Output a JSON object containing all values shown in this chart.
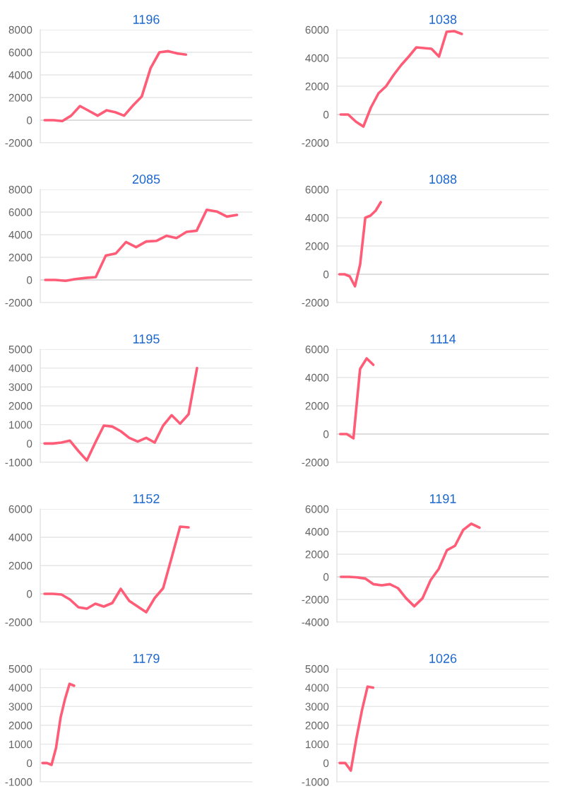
{
  "chart_data": [
    {
      "type": "line",
      "title": "1196",
      "categories": [
        null,
        null,
        null,
        null,
        null,
        null,
        null,
        null,
        null,
        null,
        null,
        null,
        null,
        null,
        null,
        null,
        null,
        null,
        null,
        null,
        null,
        null,
        null,
        null
      ],
      "series": [
        {
          "color": "#ff5c77",
          "values": [
            0,
            0,
            -80,
            400,
            1250,
            830,
            400,
            870,
            700,
            400,
            1300,
            2100,
            4600,
            6000,
            6100,
            5900,
            5800,
            null,
            null,
            null,
            null,
            null,
            null,
            null
          ]
        }
      ],
      "ylim": [
        -2000,
        8000
      ],
      "yticks": [
        -2000,
        0,
        2000,
        4000,
        6000,
        8000
      ],
      "grid": "y",
      "tick_labels": "y",
      "ref_lines": [
        {
          "axis": "y",
          "value": 0,
          "color": "#b0b0b0"
        }
      ]
    },
    {
      "type": "line",
      "title": "1038",
      "categories": [
        null,
        null,
        null,
        null,
        null,
        null,
        null,
        null,
        null,
        null,
        null,
        null,
        null,
        null,
        null,
        null,
        null,
        null,
        null,
        null,
        null,
        null,
        null,
        null,
        null,
        null,
        null,
        null
      ],
      "series": [
        {
          "color": "#ff5c77",
          "values": [
            0,
            0,
            -500,
            -850,
            500,
            1500,
            2000,
            2800,
            3500,
            4100,
            4750,
            4700,
            4650,
            4100,
            5850,
            5900,
            5700,
            null,
            null,
            null,
            null,
            null,
            null,
            null,
            null,
            null,
            null,
            null
          ]
        }
      ],
      "ylim": [
        -2000,
        6000
      ],
      "yticks": [
        -2000,
        0,
        2000,
        4000,
        6000
      ],
      "grid": "y",
      "tick_labels": "y",
      "ref_lines": [
        {
          "axis": "y",
          "value": 0,
          "color": "#b0b0b0"
        }
      ]
    },
    {
      "type": "line",
      "title": "2085",
      "categories": [
        null,
        null,
        null,
        null,
        null,
        null,
        null,
        null,
        null,
        null,
        null,
        null,
        null,
        null,
        null,
        null,
        null,
        null,
        null,
        null,
        null
      ],
      "series": [
        {
          "color": "#ff5c77",
          "values": [
            0,
            0,
            -80,
            80,
            180,
            250,
            2150,
            2350,
            3350,
            2900,
            3400,
            3450,
            3900,
            3700,
            4250,
            4350,
            6200,
            6050,
            5600,
            5750,
            null
          ]
        }
      ],
      "ylim": [
        -2000,
        8000
      ],
      "yticks": [
        -2000,
        0,
        2000,
        4000,
        6000,
        8000
      ],
      "grid": "y",
      "tick_labels": "y",
      "ref_lines": [
        {
          "axis": "y",
          "value": 0,
          "color": "#b0b0b0"
        }
      ]
    },
    {
      "type": "line",
      "title": "1088",
      "categories": [
        null,
        null,
        null,
        null,
        null,
        null,
        null,
        null,
        null,
        null,
        null,
        null,
        null,
        null,
        null,
        null,
        null,
        null,
        null,
        null,
        null,
        null,
        null,
        null,
        null,
        null,
        null,
        null,
        null,
        null,
        null,
        null,
        null,
        null,
        null,
        null,
        null,
        null,
        null,
        null,
        null
      ],
      "series": [
        {
          "color": "#ff5c77",
          "values": [
            0,
            0,
            -150,
            -850,
            700,
            4000,
            4150,
            4500,
            5100,
            null,
            null,
            null,
            null,
            null,
            null,
            null,
            null,
            null,
            null,
            null,
            null,
            null,
            null,
            null,
            null,
            null,
            null,
            null,
            null,
            null,
            null,
            null,
            null,
            null,
            null,
            null,
            null,
            null,
            null,
            null,
            null
          ]
        }
      ],
      "ylim": [
        -2000,
        6000
      ],
      "yticks": [
        -2000,
        0,
        2000,
        4000,
        6000
      ],
      "grid": "y",
      "tick_labels": "y",
      "ref_lines": [
        {
          "axis": "y",
          "value": 0,
          "color": "#b0b0b0"
        }
      ]
    },
    {
      "type": "line",
      "title": "1195",
      "categories": [
        null,
        null,
        null,
        null,
        null,
        null,
        null,
        null,
        null,
        null,
        null,
        null,
        null,
        null,
        null,
        null,
        null,
        null,
        null,
        null,
        null,
        null,
        null,
        null,
        null
      ],
      "series": [
        {
          "color": "#ff5c77",
          "values": [
            0,
            0,
            50,
            150,
            -400,
            -900,
            50,
            950,
            900,
            650,
            300,
            100,
            300,
            50,
            950,
            1500,
            1050,
            1550,
            4000,
            null,
            null,
            null,
            null,
            null,
            null
          ]
        }
      ],
      "ylim": [
        -1000,
        5000
      ],
      "yticks": [
        -1000,
        0,
        1000,
        2000,
        3000,
        4000,
        5000
      ],
      "grid": "y",
      "tick_labels": "y",
      "ref_lines": [
        {
          "axis": "y",
          "value": 0,
          "color": "#b0b0b0"
        }
      ]
    },
    {
      "type": "line",
      "title": "1114",
      "categories": [
        null,
        null,
        null,
        null,
        null,
        null,
        null,
        null,
        null,
        null,
        null,
        null,
        null,
        null,
        null,
        null,
        null,
        null,
        null,
        null,
        null,
        null,
        null,
        null,
        null,
        null,
        null,
        null,
        null,
        null,
        null,
        null
      ],
      "series": [
        {
          "color": "#ff5c77",
          "values": [
            0,
            0,
            -300,
            4600,
            5350,
            4900,
            null,
            null,
            null,
            null,
            null,
            null,
            null,
            null,
            null,
            null,
            null,
            null,
            null,
            null,
            null,
            null,
            null,
            null,
            null,
            null,
            null,
            null,
            null,
            null,
            null,
            null
          ]
        }
      ],
      "ylim": [
        -2000,
        6000
      ],
      "yticks": [
        -2000,
        0,
        2000,
        4000,
        6000
      ],
      "grid": "y",
      "tick_labels": "y",
      "ref_lines": [
        {
          "axis": "y",
          "value": 0,
          "color": "#b0b0b0"
        }
      ]
    },
    {
      "type": "line",
      "title": "1152",
      "categories": [
        null,
        null,
        null,
        null,
        null,
        null,
        null,
        null,
        null,
        null,
        null,
        null,
        null,
        null,
        null,
        null,
        null,
        null,
        null,
        null,
        null,
        null,
        null,
        null,
        null
      ],
      "series": [
        {
          "color": "#ff5c77",
          "values": [
            0,
            0,
            -50,
            -400,
            -950,
            -1050,
            -700,
            -900,
            -650,
            350,
            -500,
            -900,
            -1300,
            -300,
            400,
            2550,
            4750,
            4700,
            null,
            null,
            null,
            null,
            null,
            null,
            null
          ]
        }
      ],
      "ylim": [
        -2000,
        6000
      ],
      "yticks": [
        -2000,
        0,
        2000,
        4000,
        6000
      ],
      "grid": "y",
      "tick_labels": "y",
      "ref_lines": [
        {
          "axis": "y",
          "value": 0,
          "color": "#b0b0b0"
        }
      ]
    },
    {
      "type": "line",
      "title": "1191",
      "categories": [
        null,
        null,
        null,
        null,
        null,
        null,
        null,
        null,
        null,
        null,
        null,
        null,
        null,
        null,
        null,
        null,
        null,
        null,
        null,
        null,
        null,
        null,
        null,
        null,
        null,
        null
      ],
      "series": [
        {
          "color": "#ff5c77",
          "values": [
            0,
            0,
            -50,
            -150,
            -650,
            -750,
            -650,
            -1000,
            -1900,
            -2600,
            -1900,
            -300,
            700,
            2350,
            2750,
            4150,
            4700,
            4350,
            null,
            null,
            null,
            null,
            null,
            null,
            null,
            null
          ]
        }
      ],
      "ylim": [
        -4000,
        6000
      ],
      "yticks": [
        -4000,
        -2000,
        0,
        2000,
        4000,
        6000
      ],
      "grid": "y",
      "tick_labels": "y",
      "ref_lines": [
        {
          "axis": "y",
          "value": 0,
          "color": "#b0b0b0"
        }
      ]
    },
    {
      "type": "line",
      "title": "1179",
      "categories": [
        null,
        null,
        null,
        null,
        null,
        null,
        null,
        null,
        null,
        null,
        null,
        null,
        null,
        null,
        null,
        null,
        null,
        null,
        null,
        null,
        null,
        null,
        null,
        null,
        null,
        null,
        null,
        null,
        null,
        null,
        null,
        null,
        null,
        null,
        null,
        null,
        null,
        null,
        null,
        null,
        null,
        null,
        null,
        null,
        null,
        null,
        null
      ],
      "series": [
        {
          "color": "#ff5c77",
          "values": [
            0,
            0,
            -100,
            800,
            2400,
            3400,
            4200,
            4100,
            null,
            null,
            null,
            null,
            null,
            null,
            null,
            null,
            null,
            null,
            null,
            null,
            null,
            null,
            null,
            null,
            null,
            null,
            null,
            null,
            null,
            null,
            null,
            null,
            null,
            null,
            null,
            null,
            null,
            null,
            null,
            null,
            null,
            null,
            null,
            null,
            null,
            null,
            null
          ]
        }
      ],
      "ylim": [
        -1000,
        5000
      ],
      "yticks": [
        -1000,
        0,
        1000,
        2000,
        3000,
        4000,
        5000
      ],
      "grid": "y",
      "tick_labels": "y",
      "ref_lines": [
        {
          "axis": "y",
          "value": 0,
          "color": "#b0b0b0"
        }
      ]
    },
    {
      "type": "line",
      "title": "1026",
      "categories": [
        null,
        null,
        null,
        null,
        null,
        null,
        null,
        null,
        null,
        null,
        null,
        null,
        null,
        null,
        null,
        null,
        null,
        null,
        null,
        null,
        null,
        null,
        null,
        null,
        null,
        null,
        null,
        null,
        null,
        null,
        null,
        null,
        null,
        null,
        null,
        null,
        null,
        null
      ],
      "series": [
        {
          "color": "#ff5c77",
          "values": [
            0,
            0,
            -400,
            1300,
            2800,
            4050,
            4000,
            null,
            null,
            null,
            null,
            null,
            null,
            null,
            null,
            null,
            null,
            null,
            null,
            null,
            null,
            null,
            null,
            null,
            null,
            null,
            null,
            null,
            null,
            null,
            null,
            null,
            null,
            null,
            null,
            null,
            null,
            null
          ]
        }
      ],
      "ylim": [
        -1000,
        5000
      ],
      "yticks": [
        -1000,
        0,
        1000,
        2000,
        3000,
        4000,
        5000
      ],
      "grid": "y",
      "tick_labels": "y",
      "ref_lines": [
        {
          "axis": "y",
          "value": 0,
          "color": "#b0b0b0"
        }
      ]
    }
  ]
}
